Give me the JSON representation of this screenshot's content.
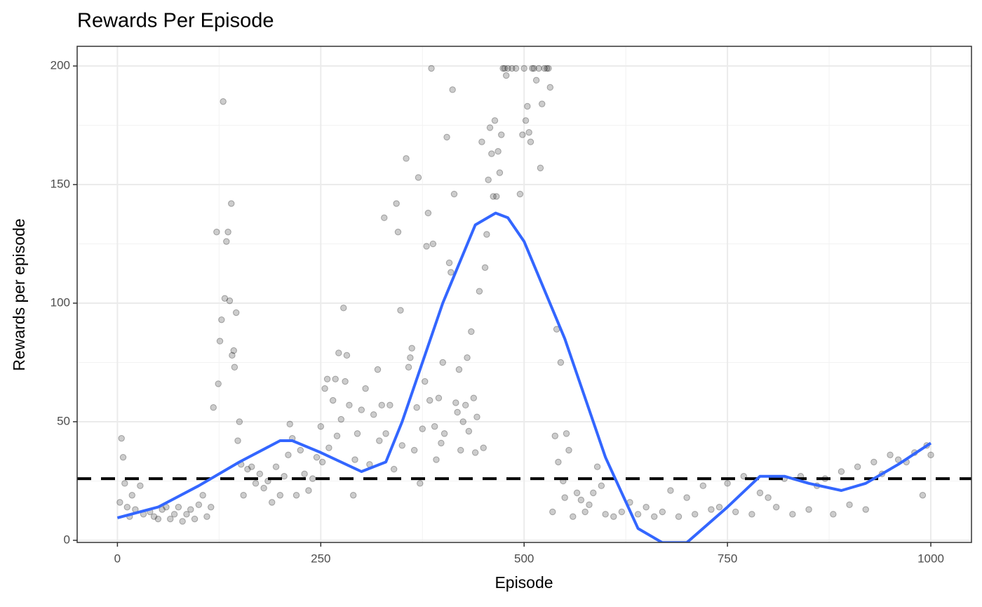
{
  "chart_data": {
    "type": "scatter",
    "title": "Rewards Per Episode",
    "xlabel": "Episode",
    "ylabel": "Rewards per episode",
    "xlim": [
      -49.5,
      1050
    ],
    "ylim": [
      -0.9,
      208.3
    ],
    "xticks": [
      0,
      250,
      500,
      750,
      1000
    ],
    "yticks": [
      0,
      50,
      100,
      150,
      200
    ],
    "minor_xticks": [
      125,
      375,
      625,
      875
    ],
    "minor_yticks": [
      25,
      75,
      125,
      175
    ],
    "grid": true,
    "points": {
      "color": "#000000",
      "x": [
        3,
        5,
        7,
        9,
        12,
        15,
        18,
        22,
        28,
        32,
        40,
        45,
        50,
        55,
        60,
        65,
        70,
        75,
        80,
        85,
        90,
        95,
        100,
        105,
        110,
        115,
        118,
        122,
        124,
        126,
        128,
        130,
        132,
        134,
        136,
        138,
        140,
        141,
        143,
        144,
        146,
        148,
        150,
        152,
        155,
        160,
        165,
        170,
        175,
        180,
        185,
        190,
        195,
        200,
        205,
        210,
        212,
        215,
        220,
        225,
        230,
        235,
        240,
        245,
        250,
        252,
        255,
        258,
        260,
        265,
        268,
        270,
        272,
        275,
        278,
        280,
        282,
        285,
        290,
        292,
        295,
        300,
        305,
        310,
        315,
        320,
        322,
        325,
        328,
        330,
        335,
        340,
        343,
        345,
        348,
        350,
        355,
        358,
        360,
        362,
        365,
        368,
        370,
        372,
        375,
        378,
        380,
        382,
        384,
        386,
        388,
        390,
        392,
        395,
        398,
        400,
        402,
        405,
        408,
        410,
        412,
        414,
        416,
        418,
        420,
        422,
        425,
        428,
        430,
        432,
        435,
        438,
        440,
        442,
        445,
        448,
        450,
        452,
        454,
        456,
        458,
        460,
        462,
        464,
        466,
        468,
        470,
        472,
        474,
        476,
        478,
        480,
        485,
        490,
        495,
        498,
        500,
        502,
        504,
        506,
        508,
        510,
        512,
        515,
        518,
        520,
        522,
        525,
        528,
        530,
        532,
        535,
        538,
        540,
        542,
        545,
        548,
        550,
        552,
        555,
        560,
        565,
        570,
        575,
        580,
        585,
        590,
        595,
        600,
        610,
        620,
        630,
        640,
        650,
        660,
        670,
        680,
        690,
        700,
        710,
        720,
        730,
        740,
        750,
        760,
        770,
        780,
        790,
        800,
        810,
        820,
        830,
        840,
        850,
        860,
        870,
        880,
        890,
        900,
        910,
        920,
        930,
        940,
        950,
        960,
        970,
        980,
        990,
        995,
        1000
      ],
      "values": [
        16,
        43,
        35,
        24,
        14,
        10,
        19,
        13,
        23,
        11,
        12,
        10,
        9,
        13,
        14,
        9,
        11,
        14,
        8,
        11,
        13,
        9,
        15,
        19,
        10,
        14,
        56,
        130,
        66,
        84,
        93,
        185,
        102,
        126,
        130,
        101,
        142,
        78,
        80,
        73,
        96,
        42,
        50,
        32,
        19,
        30,
        31,
        24,
        28,
        22,
        25,
        16,
        31,
        19,
        27,
        36,
        49,
        43,
        19,
        38,
        28,
        21,
        26,
        35,
        48,
        33,
        64,
        68,
        39,
        59,
        68,
        44,
        79,
        51,
        98,
        67,
        78,
        57,
        19,
        34,
        45,
        55,
        64,
        32,
        53,
        72,
        42,
        57,
        136,
        45,
        57,
        30,
        142,
        130,
        97,
        40,
        161,
        73,
        77,
        81,
        38,
        56,
        153,
        24,
        47,
        67,
        124,
        138,
        59,
        199,
        125,
        48,
        34,
        60,
        41,
        75,
        45,
        170,
        117,
        113,
        190,
        146,
        58,
        54,
        72,
        38,
        50,
        57,
        77,
        46,
        88,
        60,
        37,
        52,
        105,
        168,
        39,
        115,
        129,
        152,
        174,
        163,
        145,
        177,
        145,
        164,
        155,
        171,
        199,
        199,
        196,
        199,
        199,
        199,
        146,
        171,
        199,
        177,
        183,
        172,
        168,
        199,
        199,
        194,
        199,
        157,
        184,
        199,
        199,
        199,
        191,
        12,
        44,
        89,
        33,
        75,
        25,
        18,
        45,
        38,
        10,
        20,
        17,
        12,
        15,
        20,
        31,
        23,
        11,
        10,
        12,
        16,
        11,
        14,
        10,
        12,
        21,
        10,
        18,
        11,
        23,
        13,
        14,
        24,
        12,
        27,
        11,
        20,
        18,
        14,
        26,
        11,
        27,
        13,
        23,
        26,
        11,
        29,
        15,
        31,
        13,
        33,
        28,
        36,
        34,
        33,
        37,
        19,
        40,
        36
      ]
    },
    "smooth": {
      "color": "#3366ff",
      "x": [
        0,
        50,
        100,
        150,
        200,
        215,
        250,
        300,
        330,
        350,
        400,
        440,
        465,
        480,
        500,
        550,
        600,
        640,
        670,
        700,
        750,
        790,
        820,
        850,
        890,
        920,
        960,
        1000
      ],
      "values": [
        9.5,
        14,
        23,
        33,
        42,
        42,
        37,
        29,
        33,
        50,
        100,
        133,
        138,
        136,
        126,
        85,
        35,
        5,
        -1,
        -1,
        14,
        27,
        27,
        24,
        21,
        24,
        32,
        41
      ]
    },
    "hline": {
      "value": 26,
      "color": "#000000"
    }
  }
}
